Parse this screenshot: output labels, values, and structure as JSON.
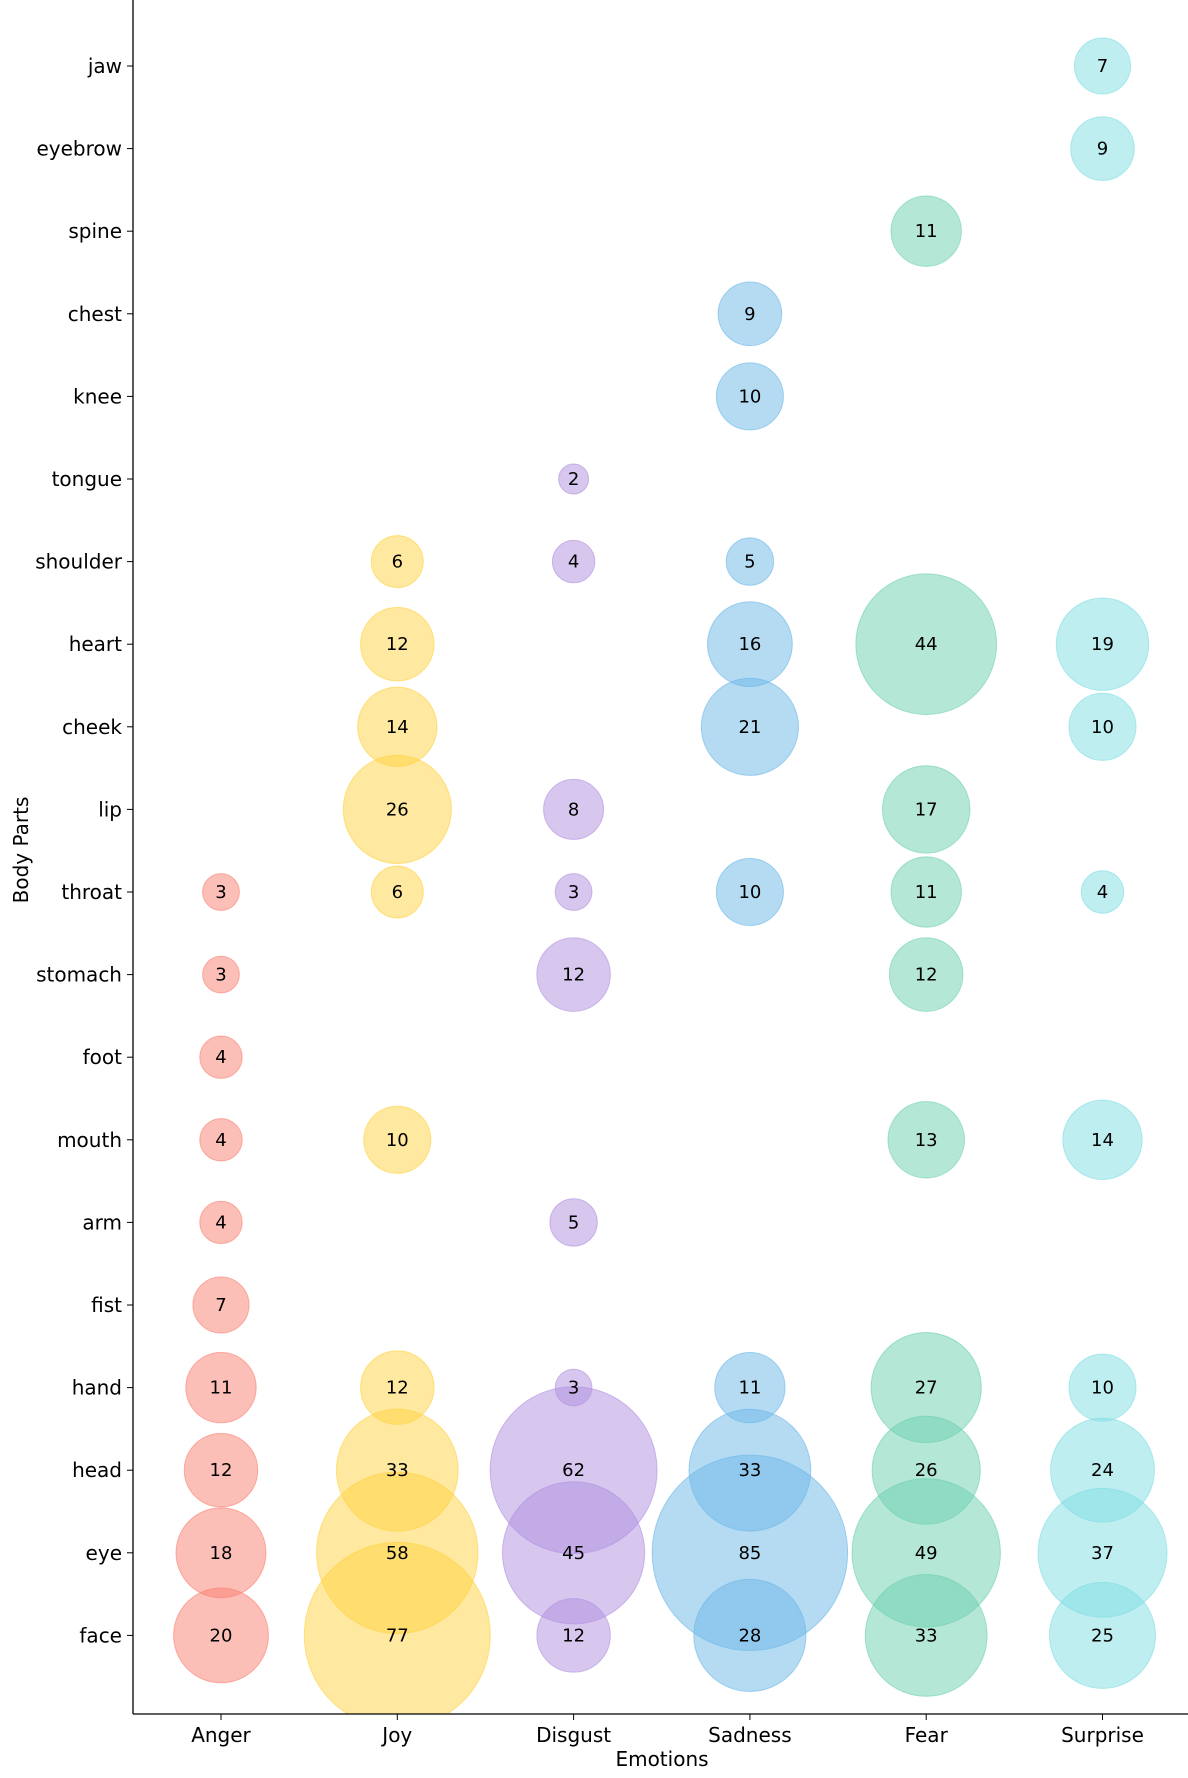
{
  "chart_data": {
    "type": "scatter",
    "subtype": "bubble",
    "title": "",
    "xlabel": "Emotions",
    "ylabel": "Body Parts",
    "x_categories": [
      "Anger",
      "Joy",
      "Disgust",
      "Sadness",
      "Fear",
      "Surprise"
    ],
    "y_categories": [
      "jaw",
      "eyebrow",
      "spine",
      "chest",
      "knee",
      "tongue",
      "shoulder",
      "heart",
      "cheek",
      "lip",
      "throat",
      "stomach",
      "foot",
      "mouth",
      "arm",
      "fist",
      "hand",
      "head",
      "eye",
      "face"
    ],
    "colors": {
      "Anger": "#FA8072",
      "Joy": "#FFD23F",
      "Disgust": "#B08FE0",
      "Sadness": "#6CB8E8",
      "Fear": "#6CD0B0",
      "Surprise": "#7FDDE3"
    },
    "grid": false,
    "legend": "none",
    "points": [
      {
        "emotion": "Surprise",
        "body_part": "jaw",
        "value": 7
      },
      {
        "emotion": "Surprise",
        "body_part": "eyebrow",
        "value": 9
      },
      {
        "emotion": "Fear",
        "body_part": "spine",
        "value": 11
      },
      {
        "emotion": "Sadness",
        "body_part": "chest",
        "value": 9
      },
      {
        "emotion": "Sadness",
        "body_part": "knee",
        "value": 10
      },
      {
        "emotion": "Disgust",
        "body_part": "tongue",
        "value": 2
      },
      {
        "emotion": "Joy",
        "body_part": "shoulder",
        "value": 6
      },
      {
        "emotion": "Disgust",
        "body_part": "shoulder",
        "value": 4
      },
      {
        "emotion": "Sadness",
        "body_part": "shoulder",
        "value": 5
      },
      {
        "emotion": "Joy",
        "body_part": "heart",
        "value": 12
      },
      {
        "emotion": "Sadness",
        "body_part": "heart",
        "value": 16
      },
      {
        "emotion": "Fear",
        "body_part": "heart",
        "value": 44
      },
      {
        "emotion": "Surprise",
        "body_part": "heart",
        "value": 19
      },
      {
        "emotion": "Joy",
        "body_part": "cheek",
        "value": 14
      },
      {
        "emotion": "Sadness",
        "body_part": "cheek",
        "value": 21
      },
      {
        "emotion": "Surprise",
        "body_part": "cheek",
        "value": 10
      },
      {
        "emotion": "Joy",
        "body_part": "lip",
        "value": 26
      },
      {
        "emotion": "Disgust",
        "body_part": "lip",
        "value": 8
      },
      {
        "emotion": "Fear",
        "body_part": "lip",
        "value": 17
      },
      {
        "emotion": "Anger",
        "body_part": "throat",
        "value": 3
      },
      {
        "emotion": "Joy",
        "body_part": "throat",
        "value": 6
      },
      {
        "emotion": "Disgust",
        "body_part": "throat",
        "value": 3
      },
      {
        "emotion": "Sadness",
        "body_part": "throat",
        "value": 10
      },
      {
        "emotion": "Fear",
        "body_part": "throat",
        "value": 11
      },
      {
        "emotion": "Surprise",
        "body_part": "throat",
        "value": 4
      },
      {
        "emotion": "Anger",
        "body_part": "stomach",
        "value": 3
      },
      {
        "emotion": "Disgust",
        "body_part": "stomach",
        "value": 12
      },
      {
        "emotion": "Fear",
        "body_part": "stomach",
        "value": 12
      },
      {
        "emotion": "Anger",
        "body_part": "foot",
        "value": 4
      },
      {
        "emotion": "Anger",
        "body_part": "mouth",
        "value": 4
      },
      {
        "emotion": "Joy",
        "body_part": "mouth",
        "value": 10
      },
      {
        "emotion": "Fear",
        "body_part": "mouth",
        "value": 13
      },
      {
        "emotion": "Surprise",
        "body_part": "mouth",
        "value": 14
      },
      {
        "emotion": "Anger",
        "body_part": "arm",
        "value": 4
      },
      {
        "emotion": "Disgust",
        "body_part": "arm",
        "value": 5
      },
      {
        "emotion": "Anger",
        "body_part": "fist",
        "value": 7
      },
      {
        "emotion": "Anger",
        "body_part": "hand",
        "value": 11
      },
      {
        "emotion": "Joy",
        "body_part": "hand",
        "value": 12
      },
      {
        "emotion": "Disgust",
        "body_part": "hand",
        "value": 3
      },
      {
        "emotion": "Sadness",
        "body_part": "hand",
        "value": 11
      },
      {
        "emotion": "Fear",
        "body_part": "hand",
        "value": 27
      },
      {
        "emotion": "Surprise",
        "body_part": "hand",
        "value": 10
      },
      {
        "emotion": "Anger",
        "body_part": "head",
        "value": 12
      },
      {
        "emotion": "Joy",
        "body_part": "head",
        "value": 33
      },
      {
        "emotion": "Disgust",
        "body_part": "head",
        "value": 62
      },
      {
        "emotion": "Sadness",
        "body_part": "head",
        "value": 33
      },
      {
        "emotion": "Fear",
        "body_part": "head",
        "value": 26
      },
      {
        "emotion": "Surprise",
        "body_part": "head",
        "value": 24
      },
      {
        "emotion": "Anger",
        "body_part": "eye",
        "value": 18
      },
      {
        "emotion": "Joy",
        "body_part": "eye",
        "value": 58
      },
      {
        "emotion": "Disgust",
        "body_part": "eye",
        "value": 45
      },
      {
        "emotion": "Sadness",
        "body_part": "eye",
        "value": 85
      },
      {
        "emotion": "Fear",
        "body_part": "eye",
        "value": 49
      },
      {
        "emotion": "Surprise",
        "body_part": "eye",
        "value": 37
      },
      {
        "emotion": "Anger",
        "body_part": "face",
        "value": 20
      },
      {
        "emotion": "Joy",
        "body_part": "face",
        "value": 77
      },
      {
        "emotion": "Disgust",
        "body_part": "face",
        "value": 12
      },
      {
        "emotion": "Sadness",
        "body_part": "face",
        "value": 28
      },
      {
        "emotion": "Fear",
        "body_part": "face",
        "value": 33
      },
      {
        "emotion": "Surprise",
        "body_part": "face",
        "value": 25
      }
    ]
  }
}
